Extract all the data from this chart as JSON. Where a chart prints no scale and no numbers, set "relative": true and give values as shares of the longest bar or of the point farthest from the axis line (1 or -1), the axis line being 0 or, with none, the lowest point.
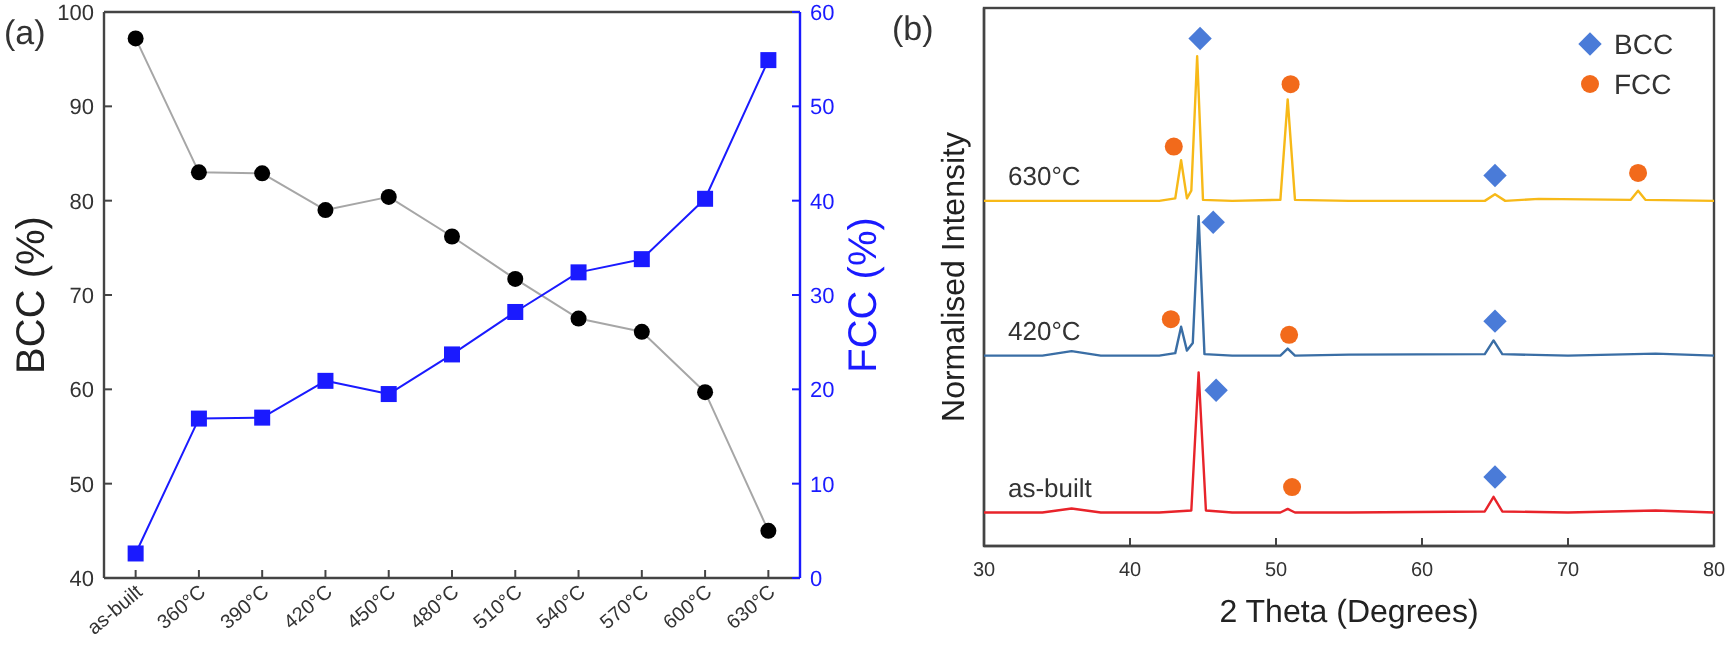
{
  "chart_data": [
    {
      "type": "line",
      "title": "(a)",
      "ylabel": "BCC (%)",
      "y2label": "FCC (%)",
      "categories": [
        "as-built",
        "360°C",
        "390°C",
        "420°C",
        "450°C",
        "480°C",
        "510°C",
        "540°C",
        "570°C",
        "600°C",
        "630°C"
      ],
      "ylim": [
        40,
        100
      ],
      "yticks": [
        40,
        50,
        60,
        70,
        80,
        90,
        100
      ],
      "y2lim": [
        0,
        60
      ],
      "y2ticks": [
        0,
        10,
        20,
        30,
        40,
        50,
        60
      ],
      "marker": "circle",
      "grid": false,
      "legend": false,
      "series": [
        {
          "color": "#000000",
          "values": [
            97.2,
            83,
            82.9,
            79,
            80.4,
            76.2,
            71.7,
            67.5,
            66.1,
            59.7,
            45
          ]
        },
        {
          "color": "#1a1aff",
          "marker": "square",
          "axis": "y2",
          "values": [
            2.6,
            16.9,
            17.0,
            20.9,
            19.5,
            23.7,
            28.2,
            32.4,
            33.8,
            40.2,
            54.9
          ]
        }
      ]
    },
    {
      "type": "line",
      "title": "(b)",
      "xlabel": "2 Theta (Degrees)",
      "ylabel": "Normalised Intensity",
      "relative": true,
      "xlim": [
        30,
        80
      ],
      "xticks": [
        30,
        40,
        50,
        60,
        70,
        80
      ],
      "tick_labels": "x",
      "grid": false,
      "legend": "top right",
      "marker": "none",
      "series": [
        {
          "name": "as-built",
          "color": "#e8232a",
          "x": [
            30,
            34,
            36,
            38,
            42,
            44.2,
            44.7,
            45.2,
            47,
            50.3,
            50.8,
            51.3,
            55,
            64.3,
            64.9,
            65.5,
            70,
            76,
            80
          ],
          "values": [
            0.066,
            0.066,
            0.074,
            0.066,
            0.066,
            0.07,
            0.342,
            0.07,
            0.066,
            0.066,
            0.073,
            0.066,
            0.066,
            0.068,
            0.097,
            0.068,
            0.066,
            0.07,
            0.066
          ]
        },
        {
          "name": "420°C",
          "color": "#3a6ea5",
          "x": [
            30,
            34,
            36,
            38,
            42,
            43.1,
            43.5,
            43.9,
            44.3,
            44.7,
            45.1,
            47,
            50.3,
            50.8,
            51.3,
            55,
            64.3,
            64.9,
            65.5,
            70,
            76,
            80
          ],
          "values": [
            0.375,
            0.375,
            0.384,
            0.375,
            0.375,
            0.38,
            0.432,
            0.385,
            0.4,
            0.65,
            0.378,
            0.375,
            0.375,
            0.389,
            0.375,
            0.377,
            0.378,
            0.405,
            0.378,
            0.375,
            0.379,
            0.375
          ]
        },
        {
          "name": "630°C",
          "color": "#f7b918",
          "x": [
            30,
            36,
            42,
            43.1,
            43.5,
            43.9,
            44.2,
            44.6,
            45,
            47,
            50.3,
            50.8,
            51.3,
            55,
            64.3,
            65,
            65.7,
            68,
            74.3,
            74.8,
            75.3,
            80
          ],
          "values": [
            0.68,
            0.68,
            0.68,
            0.685,
            0.76,
            0.685,
            0.7,
            0.965,
            0.682,
            0.68,
            0.682,
            0.88,
            0.682,
            0.68,
            0.68,
            0.693,
            0.68,
            0.684,
            0.682,
            0.7,
            0.682,
            0.68
          ]
        },
        {
          "name": "BCC",
          "type": "scatter",
          "marker": "diamond",
          "color": "#4a7bd8",
          "x": [
            44.8,
            45.7,
            65,
            45.9,
            65,
            65
          ],
          "values": [
            1.0,
            0.638,
            0.443,
            0.307,
            0.136,
            0.73
          ]
        },
        {
          "name": "FCC",
          "type": "scatter",
          "marker": "circle",
          "color": "#f26a1b",
          "x": [
            43,
            51,
            74.8,
            42.8,
            50.9,
            51.1
          ],
          "values": [
            0.787,
            0.91,
            0.735,
            0.447,
            0.416,
            0.116
          ]
        }
      ]
    }
  ]
}
